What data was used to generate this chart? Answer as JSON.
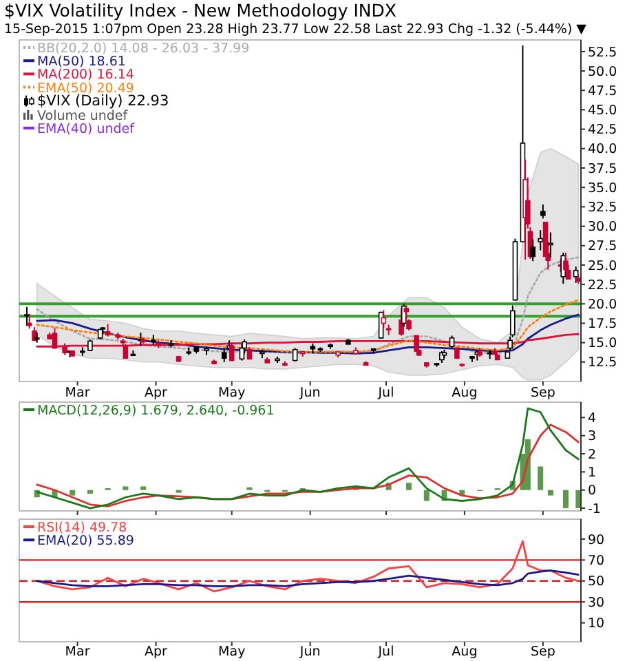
{
  "chart_data": [
    {
      "type": "candlestick",
      "title": "$VIX Volatility Index - New Methodology INDX",
      "subtitle": "15-Sep-2015 1:07pm  Open 23.28  High 23.77  Low 22.58  Last 22.93  Chg -1.32 (-5.44%) ▼",
      "legend": "top left",
      "xlim": [
        "2015-02-06",
        "2015-09-16"
      ],
      "ylim": [
        10,
        54
      ],
      "xticks": [
        {
          "value": "2015-03-01",
          "label": "Mar"
        },
        {
          "value": "2015-04-01",
          "label": "Apr"
        },
        {
          "value": "2015-05-01",
          "label": "May"
        },
        {
          "value": "2015-06-01",
          "label": "Jun"
        },
        {
          "value": "2015-07-01",
          "label": "Jul"
        },
        {
          "value": "2015-08-01",
          "label": "Aug"
        },
        {
          "value": "2015-09-01",
          "label": "Sep"
        }
      ],
      "yticks": [
        12.5,
        {
          "value": 15,
          "label": "15.0"
        },
        17.5,
        {
          "value": 20,
          "label": "20.0"
        },
        22.5,
        {
          "value": 25,
          "label": "25.0"
        },
        27.5,
        {
          "value": 30,
          "label": "30.0"
        },
        32.5,
        {
          "value": 35,
          "label": "35.0"
        },
        37.5,
        {
          "value": 40,
          "label": "40.0"
        },
        42.5,
        {
          "value": 45,
          "label": "45.0"
        },
        47.5,
        {
          "value": 50,
          "label": "50.0"
        },
        52.5
      ],
      "ref_lines": [
        {
          "axis": "y",
          "value": 20,
          "label": null,
          "color": "#33a02c"
        },
        {
          "axis": "y",
          "value": 18.4,
          "label": null,
          "color": "#33a02c"
        }
      ],
      "annotations": [
        "Volume undef",
        "EMA(40) undef"
      ],
      "series": [
        {
          "type": "line",
          "name": "BB(20,2.0) 14.08 - 26.03 - 37.99",
          "color": "#aaaaaa",
          "line_style": "dotted",
          "x": [
            "2015-02-13",
            "2015-02-20",
            "2015-02-27",
            "2015-03-06",
            "2015-03-13",
            "2015-03-20",
            "2015-03-27",
            "2015-04-02",
            "2015-04-10",
            "2015-04-17",
            "2015-04-24",
            "2015-05-01",
            "2015-05-08",
            "2015-05-15",
            "2015-05-22",
            "2015-05-29",
            "2015-06-05",
            "2015-06-12",
            "2015-06-19",
            "2015-06-26",
            "2015-07-02",
            "2015-07-10",
            "2015-07-17",
            "2015-07-24",
            "2015-07-31",
            "2015-08-07",
            "2015-08-14",
            "2015-08-20",
            "2015-08-24",
            "2015-08-26",
            "2015-08-31",
            "2015-09-04",
            "2015-09-10",
            "2015-09-15"
          ],
          "values": [
            19.3,
            17.8,
            16.5,
            15.5,
            15.4,
            15.1,
            14.7,
            14.5,
            14.3,
            14.1,
            13.9,
            13.8,
            14.0,
            13.8,
            13.7,
            13.6,
            13.8,
            13.9,
            13.8,
            13.9,
            14.8,
            15.8,
            15.8,
            15.2,
            14.2,
            13.7,
            13.6,
            14.1,
            18.0,
            21.0,
            24.0,
            25.0,
            25.7,
            26.0
          ],
          "upper": [
            22.6,
            21.0,
            19.5,
            18.0,
            17.8,
            17.5,
            16.8,
            16.5,
            16.5,
            16.2,
            16.0,
            15.8,
            16.2,
            16.0,
            15.8,
            15.5,
            15.6,
            15.6,
            15.5,
            15.8,
            18.5,
            20.8,
            20.8,
            19.5,
            17.0,
            15.5,
            15.0,
            16.5,
            28.0,
            34.0,
            39.5,
            40.0,
            39.0,
            37.99
          ],
          "lower": [
            16.0,
            14.5,
            13.5,
            13.0,
            13.0,
            12.8,
            12.5,
            12.5,
            12.2,
            12.0,
            11.8,
            11.8,
            11.8,
            11.6,
            11.6,
            11.8,
            12.0,
            12.2,
            12.2,
            12.0,
            11.2,
            10.8,
            10.8,
            11.0,
            11.5,
            12.0,
            12.2,
            11.8,
            10.5,
            10.2,
            10.2,
            10.8,
            12.5,
            14.08
          ]
        },
        {
          "type": "line",
          "name": "MA(50) 18.61",
          "color": "#1a1a8c",
          "x": [
            "2015-02-13",
            "2015-02-20",
            "2015-02-27",
            "2015-03-06",
            "2015-03-13",
            "2015-03-20",
            "2015-03-27",
            "2015-04-02",
            "2015-04-10",
            "2015-04-17",
            "2015-04-24",
            "2015-05-01",
            "2015-05-08",
            "2015-05-15",
            "2015-05-22",
            "2015-05-29",
            "2015-06-05",
            "2015-06-12",
            "2015-06-19",
            "2015-06-26",
            "2015-07-02",
            "2015-07-10",
            "2015-07-17",
            "2015-07-24",
            "2015-07-31",
            "2015-08-07",
            "2015-08-14",
            "2015-08-20",
            "2015-08-24",
            "2015-08-26",
            "2015-08-31",
            "2015-09-04",
            "2015-09-10",
            "2015-09-15"
          ],
          "values": [
            17.8,
            17.9,
            17.5,
            16.8,
            16.2,
            15.7,
            15.3,
            15.0,
            14.8,
            14.5,
            14.3,
            14.1,
            14.0,
            13.9,
            13.8,
            13.8,
            13.7,
            13.7,
            13.6,
            13.7,
            14.0,
            14.4,
            14.4,
            14.3,
            14.2,
            14.0,
            13.9,
            14.0,
            14.8,
            15.5,
            16.6,
            17.3,
            18.1,
            18.6
          ]
        },
        {
          "type": "line",
          "name": "MA(200) 16.14",
          "color": "#dc143c",
          "x": [
            "2015-02-13",
            "2015-02-20",
            "2015-02-27",
            "2015-03-06",
            "2015-03-13",
            "2015-03-20",
            "2015-03-27",
            "2015-04-02",
            "2015-04-10",
            "2015-04-17",
            "2015-04-24",
            "2015-05-01",
            "2015-05-08",
            "2015-05-15",
            "2015-05-22",
            "2015-05-29",
            "2015-06-05",
            "2015-06-12",
            "2015-06-19",
            "2015-06-26",
            "2015-07-02",
            "2015-07-10",
            "2015-07-17",
            "2015-07-24",
            "2015-07-31",
            "2015-08-07",
            "2015-08-14",
            "2015-08-20",
            "2015-08-24",
            "2015-08-26",
            "2015-08-31",
            "2015-09-04",
            "2015-09-10",
            "2015-09-15"
          ],
          "values": [
            14.5,
            14.5,
            14.6,
            14.6,
            14.6,
            14.6,
            14.7,
            14.7,
            14.7,
            14.8,
            14.8,
            14.9,
            14.9,
            15.0,
            15.0,
            15.1,
            15.1,
            15.2,
            15.2,
            15.2,
            15.2,
            15.2,
            15.2,
            15.1,
            15.0,
            14.9,
            14.9,
            14.9,
            15.1,
            15.3,
            15.5,
            15.7,
            16.0,
            16.1
          ]
        },
        {
          "type": "line",
          "name": "EMA(50) 20.49",
          "color": "#ff7f0e",
          "line_style": "dotted",
          "x": [
            "2015-02-13",
            "2015-02-20",
            "2015-02-27",
            "2015-03-06",
            "2015-03-13",
            "2015-03-20",
            "2015-03-27",
            "2015-04-02",
            "2015-04-10",
            "2015-04-17",
            "2015-04-24",
            "2015-05-01",
            "2015-05-08",
            "2015-05-15",
            "2015-05-22",
            "2015-05-29",
            "2015-06-05",
            "2015-06-12",
            "2015-06-19",
            "2015-06-26",
            "2015-07-02",
            "2015-07-10",
            "2015-07-17",
            "2015-07-24",
            "2015-07-31",
            "2015-08-07",
            "2015-08-14",
            "2015-08-20",
            "2015-08-24",
            "2015-08-26",
            "2015-08-31",
            "2015-09-04",
            "2015-09-10",
            "2015-09-15"
          ],
          "values": [
            17.3,
            17.0,
            16.6,
            16.3,
            16.1,
            15.8,
            15.6,
            15.4,
            15.1,
            14.9,
            14.6,
            14.4,
            14.3,
            14.1,
            13.9,
            13.8,
            13.8,
            13.8,
            13.8,
            14.0,
            14.6,
            15.3,
            15.0,
            14.7,
            14.5,
            14.2,
            14.0,
            14.4,
            16.0,
            17.0,
            18.2,
            19.0,
            19.9,
            20.5
          ]
        },
        {
          "name": "$VIX (Daily) 22.93",
          "color": "#000000",
          "x": [
            "2015-02-09",
            "2015-02-10",
            "2015-02-12",
            "2015-02-13",
            "2015-02-18",
            "2015-02-20",
            "2015-02-24",
            "2015-02-26",
            "2015-02-27",
            "2015-03-03",
            "2015-03-06",
            "2015-03-10",
            "2015-03-11",
            "2015-03-13",
            "2015-03-17",
            "2015-03-19",
            "2015-03-20",
            "2015-03-23",
            "2015-03-26",
            "2015-03-27",
            "2015-03-31",
            "2015-04-02",
            "2015-04-07",
            "2015-04-10",
            "2015-04-14",
            "2015-04-17",
            "2015-04-21",
            "2015-04-24",
            "2015-04-28",
            "2015-04-30",
            "2015-05-01",
            "2015-05-05",
            "2015-05-06",
            "2015-05-08",
            "2015-05-13",
            "2015-05-15",
            "2015-05-19",
            "2015-05-22",
            "2015-05-26",
            "2015-05-29",
            "2015-06-02",
            "2015-06-05",
            "2015-06-09",
            "2015-06-12",
            "2015-06-16",
            "2015-06-19",
            "2015-06-23",
            "2015-06-26",
            "2015-06-29",
            "2015-06-30",
            "2015-07-02",
            "2015-07-07",
            "2015-07-08",
            "2015-07-09",
            "2015-07-10",
            "2015-07-13",
            "2015-07-14",
            "2015-07-17",
            "2015-07-21",
            "2015-07-23",
            "2015-07-24",
            "2015-07-27",
            "2015-07-29",
            "2015-07-31",
            "2015-08-04",
            "2015-08-06",
            "2015-08-07",
            "2015-08-11",
            "2015-08-13",
            "2015-08-14",
            "2015-08-18",
            "2015-08-19",
            "2015-08-20",
            "2015-08-21",
            "2015-08-24",
            "2015-08-25",
            "2015-08-26",
            "2015-08-27",
            "2015-08-28",
            "2015-08-31",
            "2015-09-01",
            "2015-09-02",
            "2015-09-03",
            "2015-09-04",
            "2015-09-08",
            "2015-09-09",
            "2015-09-10",
            "2015-09-11",
            "2015-09-14",
            "2015-09-15"
          ],
          "ohlc": [
            [
              18.5,
              19.6,
              17.2,
              18.6
            ],
            [
              17.5,
              18.7,
              16.8,
              17.2
            ],
            [
              16.5,
              17.0,
              15.2,
              15.3
            ],
            [
              15.5,
              16.3,
              15.0,
              15.6
            ],
            [
              16.0,
              16.3,
              15.4,
              15.5
            ],
            [
              16.2,
              16.9,
              14.2,
              14.3
            ],
            [
              14.4,
              14.9,
              13.4,
              13.7
            ],
            [
              13.8,
              14.0,
              13.1,
              13.9
            ],
            [
              13.9,
              14.0,
              13.2,
              13.3
            ],
            [
              13.8,
              14.4,
              13.3,
              13.9
            ],
            [
              14.0,
              15.4,
              13.9,
              15.2
            ],
            [
              15.6,
              16.7,
              15.4,
              16.7
            ],
            [
              16.8,
              17.0,
              16.1,
              16.9
            ],
            [
              16.4,
              17.4,
              15.8,
              16.0
            ],
            [
              16.0,
              16.3,
              15.4,
              15.7
            ],
            [
              15.2,
              15.5,
              14.6,
              15.0
            ],
            [
              14.5,
              14.8,
              13.0,
              13.0
            ],
            [
              13.5,
              14.0,
              13.3,
              13.4
            ],
            [
              15.4,
              16.3,
              14.6,
              15.4
            ],
            [
              15.4,
              15.6,
              14.9,
              15.1
            ],
            [
              15.3,
              16.0,
              14.7,
              15.3
            ],
            [
              14.9,
              15.3,
              14.3,
              14.7
            ],
            [
              14.8,
              15.3,
              14.4,
              14.8
            ],
            [
              13.2,
              13.3,
              12.5,
              12.6
            ],
            [
              13.8,
              14.4,
              13.4,
              13.7
            ],
            [
              14.4,
              14.6,
              13.6,
              13.9
            ],
            [
              14.0,
              14.5,
              13.4,
              14.2
            ],
            [
              12.6,
              12.8,
              12.2,
              12.3
            ],
            [
              13.7,
              14.3,
              12.5,
              13.0
            ],
            [
              14.3,
              15.3,
              14.0,
              14.6
            ],
            [
              14.6,
              15.0,
              12.6,
              12.7
            ],
            [
              12.9,
              14.8,
              12.7,
              14.3
            ],
            [
              14.3,
              15.4,
              13.6,
              15.1
            ],
            [
              14.1,
              14.4,
              12.8,
              12.9
            ],
            [
              13.6,
              14.1,
              13.0,
              13.8
            ],
            [
              12.8,
              13.1,
              12.4,
              12.4
            ],
            [
              12.7,
              13.2,
              12.4,
              12.9
            ],
            [
              12.3,
              12.6,
              12.0,
              12.1
            ],
            [
              12.7,
              14.3,
              12.6,
              14.1
            ],
            [
              13.6,
              13.9,
              13.2,
              13.8
            ],
            [
              14.5,
              14.9,
              13.6,
              14.2
            ],
            [
              14.2,
              14.4,
              13.8,
              14.2
            ],
            [
              14.7,
              14.9,
              14.2,
              14.5
            ],
            [
              13.4,
              13.8,
              13.1,
              13.8
            ],
            [
              15.3,
              15.5,
              14.8,
              14.8
            ],
            [
              13.6,
              14.4,
              13.5,
              14.0
            ],
            [
              12.4,
              12.6,
              12.1,
              12.1
            ],
            [
              14.2,
              14.2,
              13.6,
              14.0
            ],
            [
              15.6,
              19.0,
              15.5,
              18.9
            ],
            [
              17.5,
              19.2,
              16.9,
              18.2
            ],
            [
              16.8,
              17.3,
              16.0,
              16.8
            ],
            [
              17.9,
              19.4,
              15.9,
              16.1
            ],
            [
              17.5,
              20.0,
              17.0,
              19.7
            ],
            [
              19.4,
              19.8,
              17.9,
              19.0
            ],
            [
              17.8,
              18.0,
              16.6,
              16.8
            ],
            [
              15.9,
              15.9,
              13.8,
              13.9
            ],
            [
              14.0,
              14.1,
              13.3,
              13.4
            ],
            [
              12.4,
              12.4,
              11.8,
              12.0
            ],
            [
              12.3,
              12.4,
              11.9,
              12.2
            ],
            [
              12.8,
              13.9,
              12.4,
              13.7
            ],
            [
              13.4,
              14.1,
              13.0,
              13.7
            ],
            [
              14.5,
              15.9,
              14.2,
              15.6
            ],
            [
              14.3,
              14.4,
              12.9,
              13.0
            ],
            [
              12.2,
              12.3,
              11.9,
              12.1
            ],
            [
              13.2,
              13.3,
              12.5,
              13.0
            ],
            [
              13.5,
              14.0,
              12.7,
              13.8
            ],
            [
              13.8,
              14.3,
              13.2,
              13.4
            ],
            [
              13.6,
              14.1,
              12.9,
              13.7
            ],
            [
              13.9,
              14.3,
              13.5,
              13.5
            ],
            [
              13.4,
              13.5,
              12.8,
              12.8
            ],
            [
              13.0,
              13.8,
              13.0,
              13.8
            ],
            [
              14.3,
              15.8,
              14.0,
              15.3
            ],
            [
              16.0,
              19.8,
              15.7,
              19.1
            ],
            [
              20.5,
              28.4,
              20.4,
              28.0
            ],
            [
              28.0,
              53.3,
              28.0,
              40.7
            ],
            [
              31.1,
              38.6,
              25.7,
              36.0
            ],
            [
              33.3,
              36.3,
              29.7,
              30.3
            ],
            [
              29.3,
              29.9,
              25.8,
              26.1
            ],
            [
              27.3,
              28.3,
              25.5,
              26.1
            ],
            [
              28.0,
              29.5,
              26.9,
              28.4
            ],
            [
              31.9,
              32.8,
              31.0,
              31.4
            ],
            [
              30.5,
              30.5,
              26.1,
              26.1
            ],
            [
              26.5,
              28.0,
              24.4,
              25.6
            ],
            [
              27.6,
              29.2,
              26.0,
              27.8
            ],
            [
              25.0,
              25.8,
              24.1,
              24.9
            ],
            [
              23.5,
              26.6,
              22.6,
              26.2
            ],
            [
              25.5,
              26.6,
              24.1,
              24.4
            ],
            [
              24.3,
              25.0,
              23.2,
              23.2
            ],
            [
              23.5,
              24.8,
              22.7,
              24.3
            ],
            [
              23.28,
              23.77,
              22.58,
              22.93
            ]
          ],
          "colors": [
            "#000000",
            "#cc0033",
            "#cc0033",
            "#000000",
            "#cc0033",
            "#cc0033",
            "#cc0033",
            "#000000",
            "#cc0033",
            "#000000",
            "#000000",
            "#000000",
            "#000000",
            "#cc0033",
            "#cc0033",
            "#cc0033",
            "#cc0033",
            "#000000",
            "#000000",
            "#cc0033",
            "#000000",
            "#cc0033",
            "#000000",
            "#cc0033",
            "#000000",
            "#000000",
            "#000000",
            "#cc0033",
            "#000000",
            "#000000",
            "#cc0033",
            "#000000",
            "#000000",
            "#cc0033",
            "#000000",
            "#cc0033",
            "#000000",
            "#cc0033",
            "#000000",
            "#cc0033",
            "#000000",
            "#000000",
            "#000000",
            "#cc0033",
            "#000000",
            "#cc0033",
            "#cc0033",
            "#000000",
            "#000000",
            "#cc0033",
            "#cc0033",
            "#cc0033",
            "#000000",
            "#cc0033",
            "#cc0033",
            "#cc0033",
            "#cc0033",
            "#cc0033",
            "#000000",
            "#000000",
            "#000000",
            "#000000",
            "#cc0033",
            "#cc0033",
            "#000000",
            "#000000",
            "#cc0033",
            "#000000",
            "#cc0033",
            "#cc0033",
            "#000000",
            "#000000",
            "#000000",
            "#000000",
            "#000000",
            "#cc0033",
            "#cc0033",
            "#cc0033",
            "#000000",
            "#000000",
            "#000000",
            "#cc0033",
            "#cc0033",
            "#000000",
            "#cc0033",
            "#000000",
            "#cc0033",
            "#cc0033",
            "#000000",
            "#cc0033"
          ]
        }
      ]
    },
    {
      "type": "line",
      "legend": "top left",
      "tick_labels": "y",
      "xlim": [
        "2015-02-06",
        "2015-09-16"
      ],
      "ylim": [
        -1.15,
        4.85
      ],
      "yticks": [
        -1,
        0,
        1,
        2,
        3,
        4
      ],
      "xticks": [
        {
          "value": "2015-03-01",
          "label": null
        },
        {
          "value": "2015-04-01",
          "label": null
        },
        {
          "value": "2015-05-01",
          "label": null
        },
        {
          "value": "2015-06-01",
          "label": null
        },
        {
          "value": "2015-07-01",
          "label": null
        },
        {
          "value": "2015-08-01",
          "label": null
        },
        {
          "value": "2015-09-01",
          "label": null
        }
      ],
      "x": [
        "2015-02-13",
        "2015-02-20",
        "2015-02-27",
        "2015-03-06",
        "2015-03-13",
        "2015-03-20",
        "2015-03-27",
        "2015-04-02",
        "2015-04-10",
        "2015-04-17",
        "2015-04-24",
        "2015-05-01",
        "2015-05-08",
        "2015-05-15",
        "2015-05-22",
        "2015-05-29",
        "2015-06-05",
        "2015-06-12",
        "2015-06-19",
        "2015-06-26",
        "2015-07-02",
        "2015-07-10",
        "2015-07-17",
        "2015-07-24",
        "2015-07-31",
        "2015-08-07",
        "2015-08-14",
        "2015-08-20",
        "2015-08-24",
        "2015-08-26",
        "2015-08-31",
        "2015-09-04",
        "2015-09-10",
        "2015-09-15"
      ],
      "series": [
        {
          "type": "bar",
          "color": "#5a9a4a",
          "values": [
            -0.4,
            -0.4,
            -0.3,
            -0.2,
            0.1,
            0.2,
            0.2,
            0.0,
            -0.15,
            0.0,
            0.0,
            0.0,
            0.15,
            -0.1,
            -0.1,
            0.1,
            0.0,
            null,
            0.1,
            0.0,
            0.4,
            0.4,
            -0.6,
            -0.6,
            -0.3,
            -0.05,
            0.1,
            0.5,
            2.0,
            2.8,
            1.3,
            -0.3,
            -1.0,
            -1.0
          ]
        },
        {
          "color": "#e03030",
          "values": [
            0.3,
            0.0,
            -0.4,
            -0.8,
            -0.9,
            -0.6,
            -0.4,
            -0.3,
            -0.35,
            -0.4,
            -0.5,
            -0.5,
            -0.35,
            -0.2,
            -0.2,
            -0.1,
            -0.1,
            0.0,
            0.1,
            0.1,
            0.3,
            0.8,
            0.7,
            0.1,
            -0.3,
            -0.45,
            -0.4,
            -0.2,
            0.5,
            1.7,
            3.0,
            3.6,
            3.2,
            2.64
          ]
        },
        {
          "name": "MACD(12,26,9) 1.679, 2.640, -0.961",
          "color": "#1a7a1a",
          "values": [
            -0.1,
            -0.4,
            -0.7,
            -1.0,
            -0.8,
            -0.4,
            -0.2,
            -0.3,
            -0.5,
            -0.4,
            -0.5,
            -0.5,
            -0.2,
            -0.3,
            -0.3,
            0.0,
            -0.1,
            0.1,
            0.2,
            0.1,
            0.7,
            1.2,
            0.1,
            -0.5,
            -0.6,
            -0.5,
            -0.3,
            0.3,
            2.5,
            4.5,
            4.3,
            3.3,
            2.2,
            1.7
          ]
        }
      ]
    },
    {
      "type": "line",
      "legend": "top left",
      "xlim": [
        "2015-02-06",
        "2015-09-16"
      ],
      "ylim": [
        -8,
        109
      ],
      "yticks": [
        10,
        30,
        50,
        70,
        90
      ],
      "xticks": [
        {
          "value": "2015-03-01",
          "label": "Mar"
        },
        {
          "value": "2015-04-01",
          "label": "Apr"
        },
        {
          "value": "2015-05-01",
          "label": "May"
        },
        {
          "value": "2015-06-01",
          "label": "Jun"
        },
        {
          "value": "2015-07-01",
          "label": "Jul"
        },
        {
          "value": "2015-08-01",
          "label": "Aug"
        },
        {
          "value": "2015-09-01",
          "label": "Sep"
        }
      ],
      "ref_lines": [
        {
          "axis": "y",
          "value": 70,
          "label": null,
          "color": "#e02020"
        },
        {
          "axis": "y",
          "value": 50,
          "label": null,
          "color": "#e02020",
          "line_style": "dashed"
        },
        {
          "axis": "y",
          "value": 30,
          "label": null,
          "color": "#e02020"
        }
      ],
      "x": [
        "2015-02-13",
        "2015-02-20",
        "2015-02-27",
        "2015-03-06",
        "2015-03-13",
        "2015-03-20",
        "2015-03-27",
        "2015-04-02",
        "2015-04-10",
        "2015-04-17",
        "2015-04-24",
        "2015-05-01",
        "2015-05-08",
        "2015-05-15",
        "2015-05-22",
        "2015-05-29",
        "2015-06-05",
        "2015-06-12",
        "2015-06-19",
        "2015-06-26",
        "2015-07-02",
        "2015-07-10",
        "2015-07-17",
        "2015-07-24",
        "2015-07-31",
        "2015-08-07",
        "2015-08-14",
        "2015-08-20",
        "2015-08-24",
        "2015-08-26",
        "2015-08-31",
        "2015-09-04",
        "2015-09-10",
        "2015-09-15"
      ],
      "series": [
        {
          "name": "RSI(14) 49.78",
          "color": "#ff4040",
          "values": [
            50,
            45,
            42,
            44,
            53,
            45,
            52,
            48,
            42,
            48,
            40,
            44,
            50,
            45,
            42,
            50,
            52,
            50,
            48,
            54,
            62,
            64,
            44,
            48,
            47,
            44,
            47,
            62,
            88,
            65,
            60,
            60,
            53,
            50
          ]
        },
        {
          "name": "EMA(20) 55.89",
          "color": "#1a1a8c",
          "values": [
            50,
            48,
            46,
            45,
            45,
            46,
            47,
            47,
            46,
            46,
            45,
            45,
            46,
            46,
            45,
            47,
            48,
            49,
            49,
            50,
            52,
            55,
            53,
            51,
            49,
            47,
            46,
            48,
            52,
            57,
            59,
            60,
            58,
            56
          ]
        }
      ]
    }
  ]
}
